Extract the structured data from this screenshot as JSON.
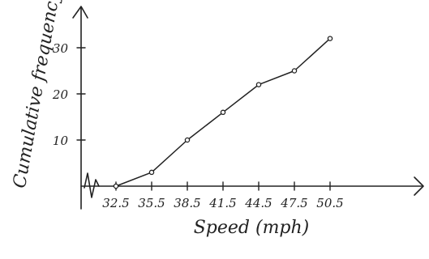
{
  "chart_data": {
    "type": "line",
    "title": "",
    "xlabel": "Speed (mph)",
    "ylabel": "Cumulative frequency",
    "x_tick_labels": [
      "32.5",
      "35.5",
      "38.5",
      "41.5",
      "44.5",
      "47.5",
      "50.5"
    ],
    "y_tick_labels": [
      "10",
      "20",
      "30"
    ],
    "series": [
      {
        "x": [
          32.5,
          35.5,
          38.5,
          41.5,
          44.5,
          47.5,
          50.5
        ],
        "y": [
          0,
          3,
          10,
          16,
          22,
          25,
          32
        ]
      }
    ],
    "xlim": [
      29.5,
      53.5
    ],
    "ylim": [
      0,
      36
    ],
    "axis_break_x": true,
    "grid": false,
    "legend": "none",
    "line_color": "#222222"
  }
}
